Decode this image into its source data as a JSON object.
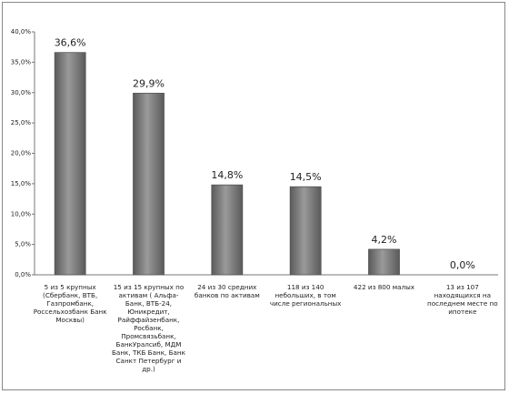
{
  "chart_data": {
    "type": "bar",
    "categories": [
      "5 из 5 крупных (Сбербанк, ВТБ,  Газпромбанк, Россельхозбанк Банк Москвы)",
      "15 из 15 крупных по активам ( Альфа-Банк, ВТБ-24, Юникредит, Райффайзенбанк, Росбанк, Промсвязьбанк, БанкУралсиб, МДМ Банк, ТКБ Банк, Банк Санкт Петербург и др.)",
      "24 из 30 средних банков по активам",
      "118 из 140 небольших, в том числе региональных",
      "422 из 800 малых",
      "13 из 107 находящихся на последнем месте по ипотеке"
    ],
    "values": [
      36.6,
      29.9,
      14.8,
      14.5,
      4.2,
      0.0
    ],
    "value_labels": [
      "36,6%",
      "29,9%",
      "14,8%",
      "14,5%",
      "4,2%",
      "0,0%"
    ],
    "color": "#7f7f7f",
    "ylim": [
      0,
      40
    ],
    "yticks": [
      {
        "value": 0,
        "label": "0,0%"
      },
      {
        "value": 5,
        "label": "5,0%"
      },
      {
        "value": 10,
        "label": "10,0%"
      },
      {
        "value": 15,
        "label": "15,0%"
      },
      {
        "value": 20,
        "label": "20,0%"
      },
      {
        "value": 25,
        "label": "25,0%"
      },
      {
        "value": 30,
        "label": "30,0%"
      },
      {
        "value": 35,
        "label": "35,0%"
      },
      {
        "value": 40,
        "label": "40,0%"
      }
    ],
    "grid": false
  }
}
